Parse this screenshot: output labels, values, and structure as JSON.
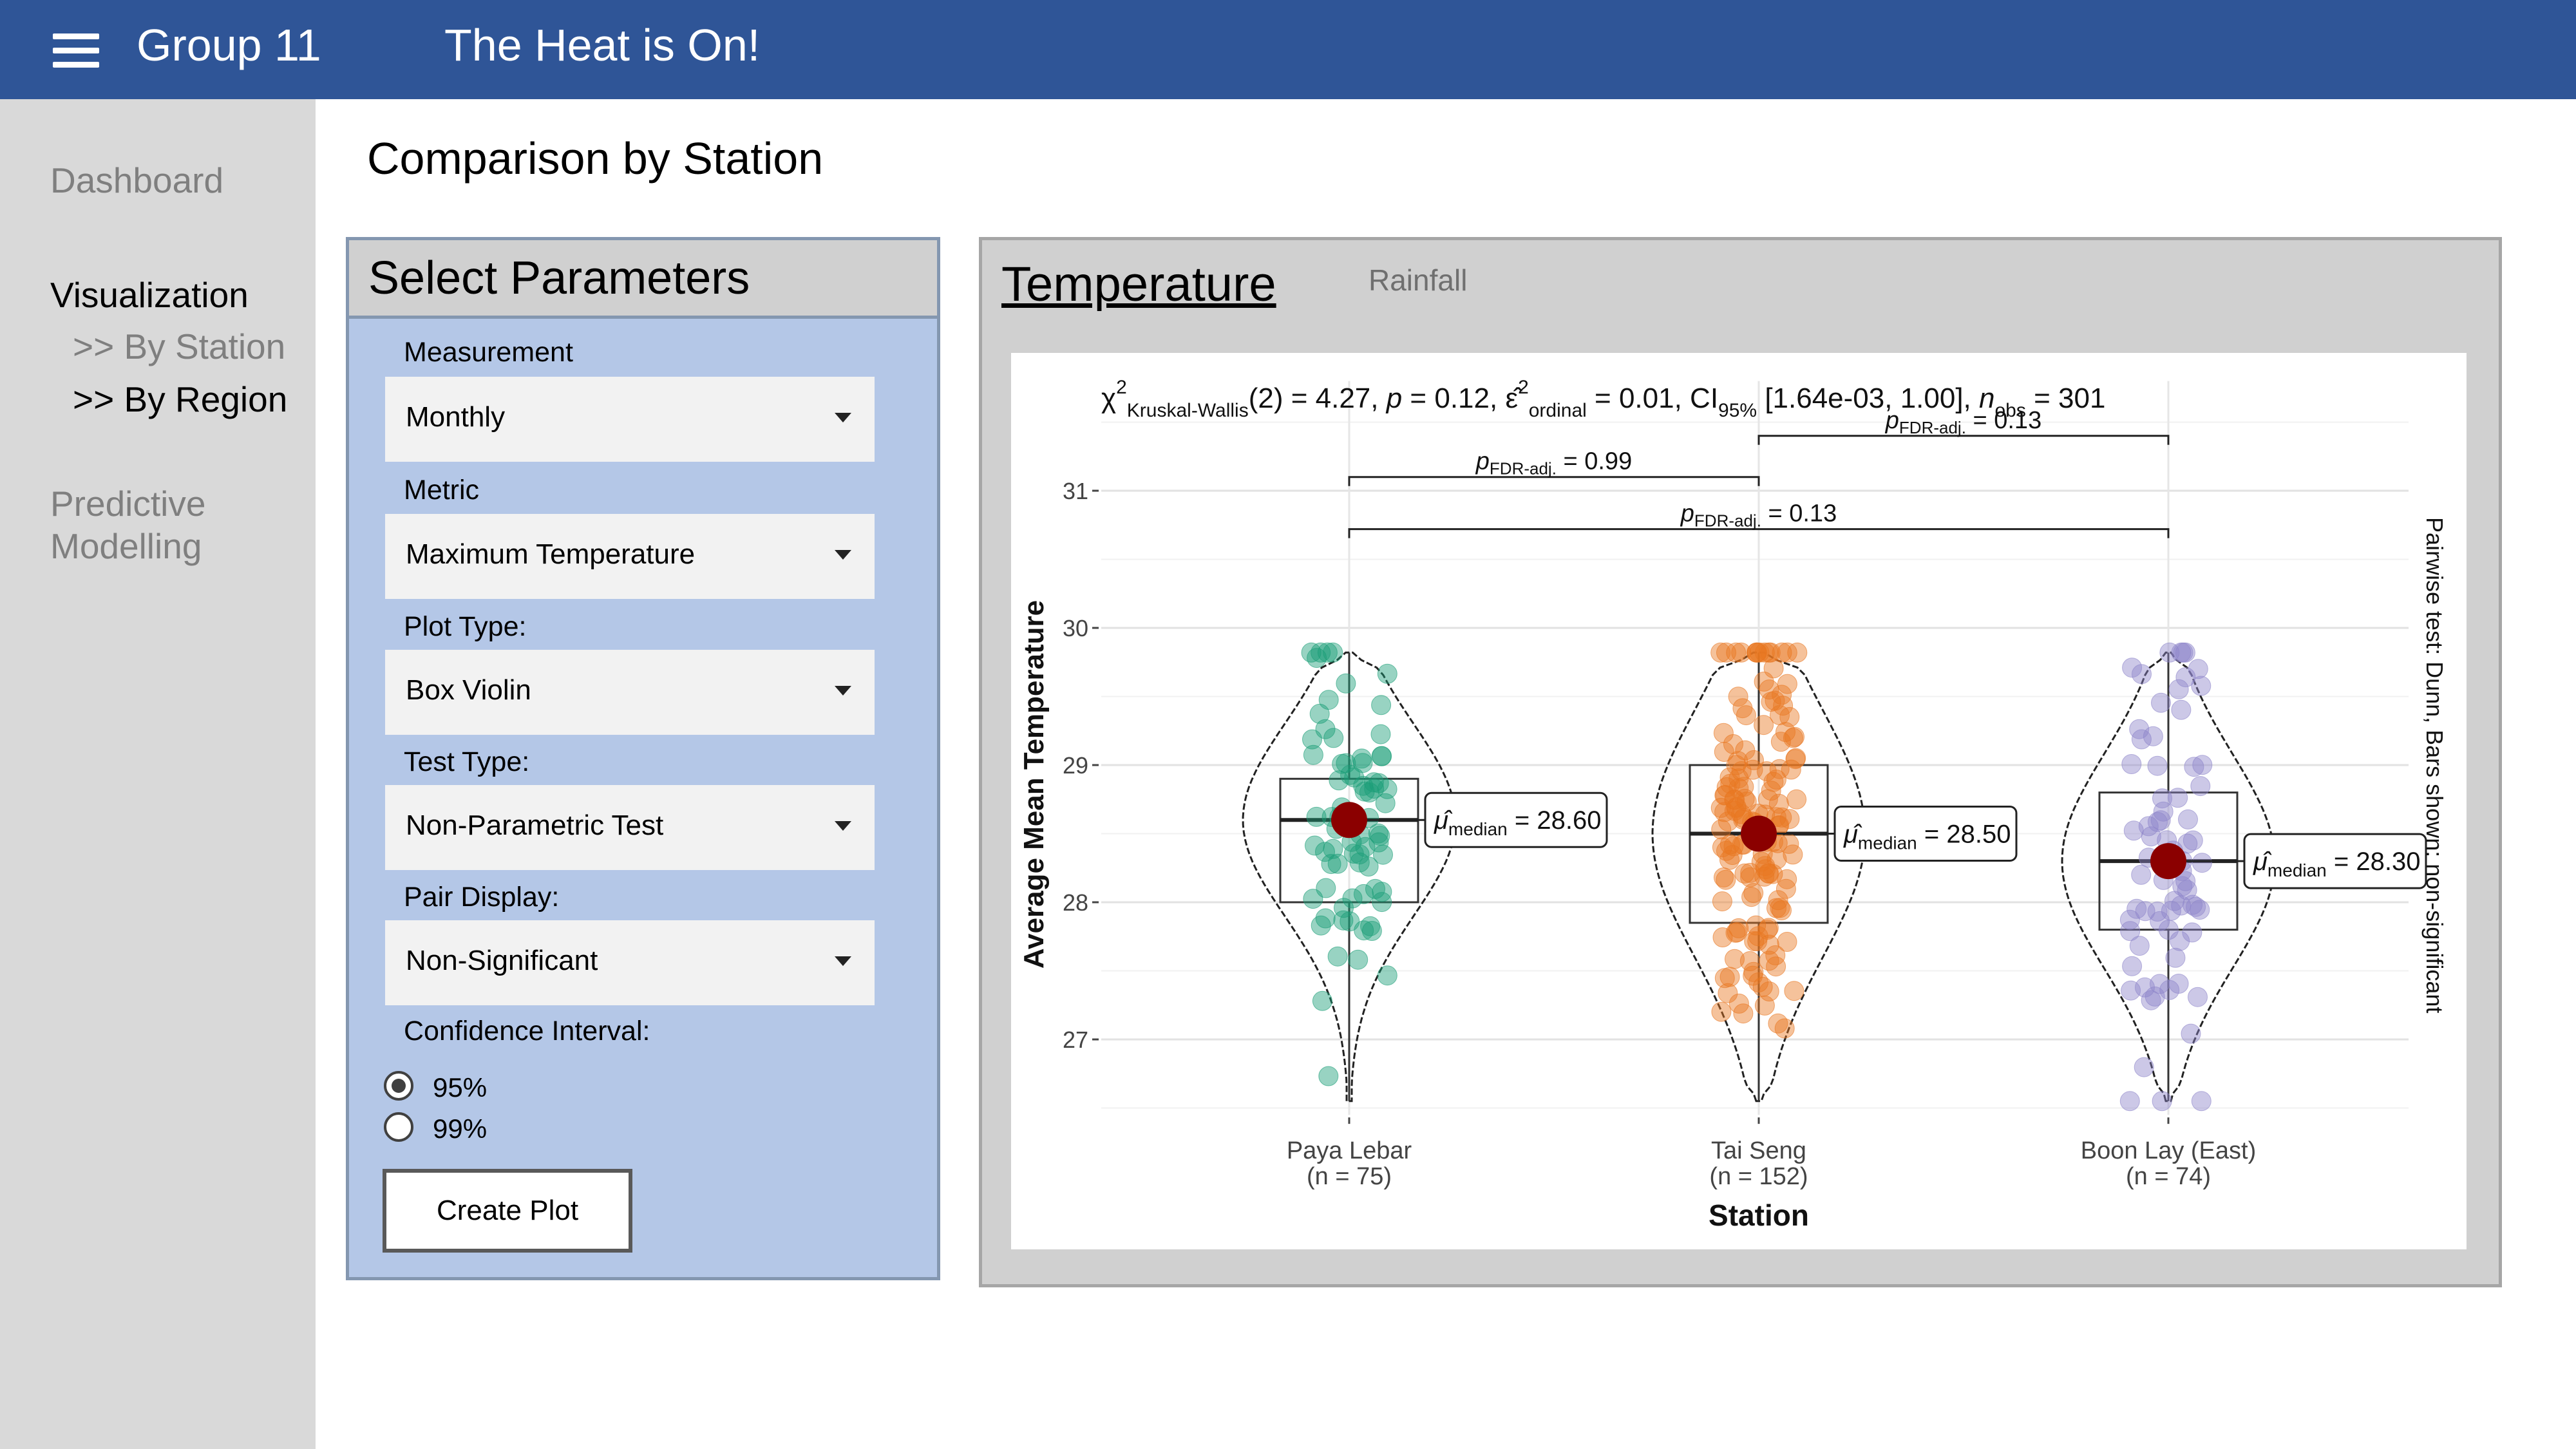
{
  "header": {
    "app_title": "Group 11",
    "page_title": "The Heat is On!"
  },
  "sidebar": {
    "dashboard": "Dashboard",
    "visualization": "Visualization",
    "by_station": ">> By Station",
    "by_region": ">> By Region",
    "predictive_line1": "Predictive",
    "predictive_line2": "Modelling"
  },
  "main": {
    "title": "Comparison by Station"
  },
  "params": {
    "title": "Select Parameters",
    "measurement_label": "Measurement",
    "measurement_value": "Monthly",
    "metric_label": "Metric",
    "metric_value": "Maximum Temperature",
    "plot_type_label": "Plot Type:",
    "plot_type_value": "Box Violin",
    "test_type_label": "Test Type:",
    "test_type_value": "Non-Parametric Test",
    "pair_display_label": "Pair Display:",
    "pair_display_value": "Non-Significant",
    "ci_label": "Confidence Interval:",
    "ci_options": [
      "95%",
      "99%"
    ],
    "ci_selected": "95%",
    "create_button": "Create Plot"
  },
  "tabs": {
    "active": "Temperature",
    "inactive": "Rainfall"
  },
  "icons": {
    "menu": "hamburger-menu-icon",
    "dropdown": "chevron-down-icon"
  },
  "colors": {
    "topbar": "#2f5597",
    "sidebar": "#d9d9d9",
    "param_panel": "#b4c7e7",
    "station1": "#1b9e77",
    "station2": "#e87722",
    "station3": "#8e86c9",
    "median_point": "#8b0000"
  },
  "chart_data": {
    "type": "box-violin",
    "subtitle": "χ²Kruskal-Wallis(2) = 4.27, p = 0.12, ε̂²ordinal = 0.01, CI95% [1.64e-03, 1.00], nobs = 301",
    "subtitle_parts": {
      "chi": "χ",
      "chi_sup": "2",
      "chi_sub": "Kruskal-Wallis",
      "stat": "(2) = 4.27, ",
      "p_label": "p",
      "p_val": " = 0.12, ",
      "eps": "ε̂",
      "eps_sup": "2",
      "eps_sub": "ordinal",
      "eps_val": " = 0.01, CI",
      "ci_sub": "95%",
      "ci_val": " [1.64e-03, 1.00], ",
      "n_label": "n",
      "n_sub": "obs",
      "n_val": " = 301"
    },
    "xlabel": "Station",
    "ylabel": "Average Mean Temperature",
    "right_caption": "Pairwise test: Dunn, Bars shown: non-significant",
    "ylim": [
      26.45,
      31.8
    ],
    "yticks": [
      27,
      28,
      29,
      30,
      31
    ],
    "stations": [
      {
        "name": "Paya Lebar",
        "n_label": "(n = 75)",
        "n": 75,
        "median": 28.6,
        "median_label": "28.60",
        "q1": 28.0,
        "q3": 28.9,
        "min": 26.55,
        "max": 29.82,
        "color": "#1b9e77"
      },
      {
        "name": "Tai Seng",
        "n_label": "(n = 152)",
        "n": 152,
        "median": 28.5,
        "median_label": "28.50",
        "q1": 27.85,
        "q3": 29.0,
        "min": 26.55,
        "max": 29.82,
        "color": "#e87722"
      },
      {
        "name": "Boon Lay (East)",
        "n_label": "(n = 74)",
        "n": 74,
        "median": 28.3,
        "median_label": "28.30",
        "q1": 27.8,
        "q3": 28.8,
        "min": 26.55,
        "max": 29.82,
        "color": "#8e86c9"
      }
    ],
    "median_symbol": "μ̂median",
    "pairwise": [
      {
        "from": 0,
        "to": 1,
        "p_text": "0.99",
        "y": 31.1
      },
      {
        "from": 0,
        "to": 2,
        "p_text": "0.13",
        "y": 30.72
      },
      {
        "from": 1,
        "to": 2,
        "p_text": "0.13",
        "y": 31.4
      }
    ],
    "pairwise_prefix": "pFDR-adj."
  }
}
